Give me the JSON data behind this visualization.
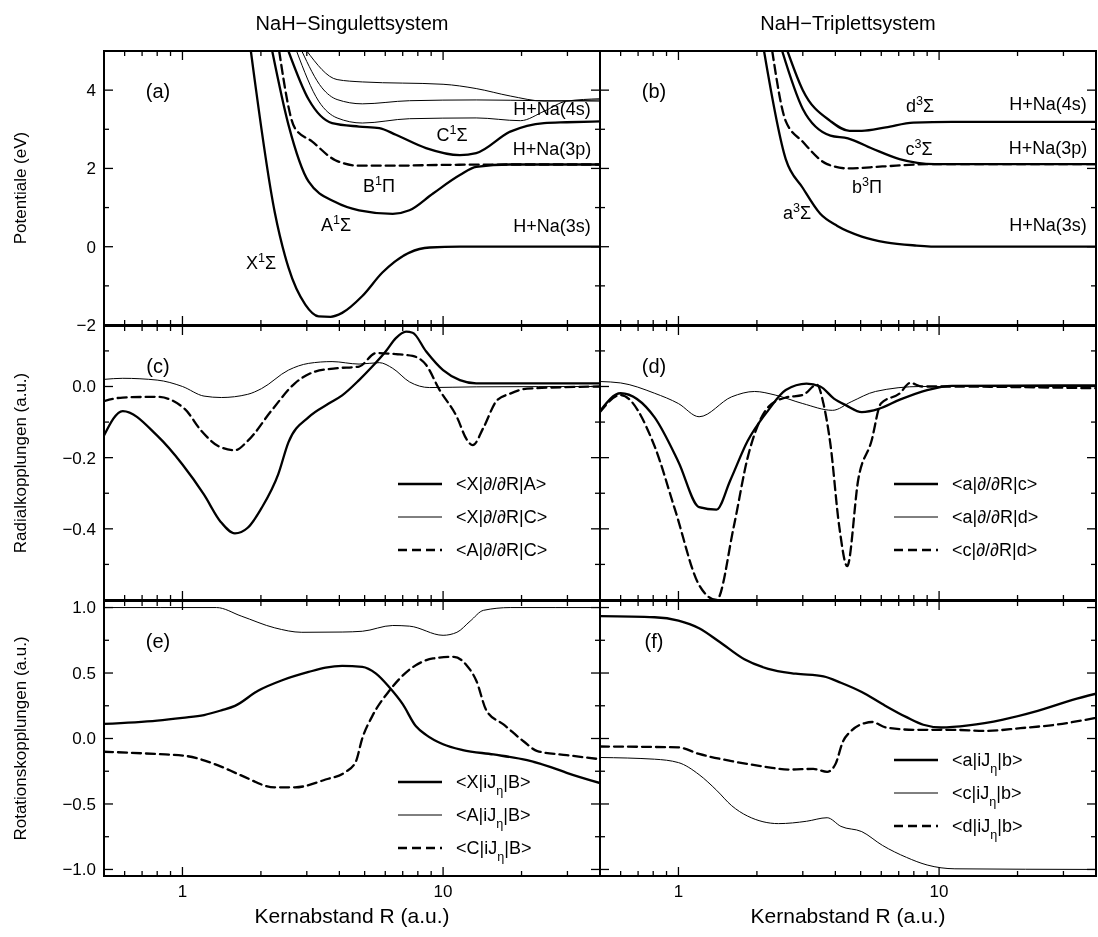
{
  "chart_data": [
    {
      "type": "line",
      "title": "NaH−Singulettsystem",
      "ylabel": "Potentiale (eV)",
      "log": "x",
      "tick_labels": "y",
      "legend": false,
      "xlim": [
        0.5,
        40
      ],
      "xticks": [
        {
          "value": 0.5,
          "label": null
        },
        {
          "value": 0.6,
          "label": null
        },
        {
          "value": 0.7,
          "label": null
        },
        {
          "value": 0.8,
          "label": null
        },
        {
          "value": 0.9,
          "label": null
        },
        {
          "value": 1,
          "label": null
        },
        {
          "value": 2,
          "label": null
        },
        {
          "value": 3,
          "label": null
        },
        {
          "value": 4,
          "label": null
        },
        {
          "value": 5,
          "label": null
        },
        {
          "value": 6,
          "label": null
        },
        {
          "value": 7,
          "label": null
        },
        {
          "value": 8,
          "label": null
        },
        {
          "value": 9,
          "label": null
        },
        {
          "value": 10,
          "label": null
        },
        {
          "value": 20,
          "label": null
        },
        {
          "value": 30,
          "label": null
        },
        {
          "value": 40,
          "label": null
        }
      ],
      "ylim": [
        -2,
        5
      ],
      "yticks": [
        {
          "value": -2,
          "label": "−2"
        },
        {
          "value": -1,
          "label": null
        },
        0,
        {
          "value": 1,
          "label": null
        },
        2,
        {
          "value": 3,
          "label": null
        },
        4,
        {
          "value": 5,
          "label": null
        }
      ],
      "series": [
        {
          "color": "#000000",
          "line_style": "solid",
          "x": [
            1.83,
            2.26,
            2.55,
            2.96,
            3.33,
            3.7,
            4.1,
            4.9,
            5.85,
            7.43,
            8.88,
            11.6,
            40
          ],
          "values": [
            5,
            0.88,
            -0.53,
            -1.48,
            -1.78,
            -1.79,
            -1.69,
            -1.26,
            -0.66,
            -0.15,
            -0.02,
            0,
            0
          ]
        },
        {
          "color": "#000000",
          "line_style": "solid",
          "x": [
            2.21,
            2.55,
            3.05,
            3.86,
            4.76,
            6.41,
            7.43,
            9.15,
            11.6,
            13.4,
            18.1,
            40
          ],
          "values": [
            5,
            3.12,
            1.66,
            1.14,
            0.93,
            0.84,
            0.93,
            1.36,
            1.83,
            2.04,
            2.1,
            2.1
          ]
        },
        {
          "color": "#000000",
          "line_style": "dashed",
          "x": [
            2.35,
            2.7,
            3.14,
            3.86,
            4.76,
            6.41,
            10,
            18.1,
            40
          ],
          "values": [
            5,
            3.03,
            2.69,
            2.21,
            2.07,
            2.07,
            2.09,
            2.1,
            2.1
          ]
        },
        {
          "color": "#000000",
          "line_style": "solid",
          "x": [
            2.55,
            3.05,
            3.75,
            4.76,
            5.69,
            6.59,
            8.6,
            11.6,
            13.4,
            18.1,
            24.4,
            29.8,
            40
          ],
          "values": [
            5,
            3.76,
            3.16,
            3.07,
            3.03,
            2.86,
            2.52,
            2.34,
            2.39,
            2.94,
            3.16,
            3.18,
            3.2
          ]
        },
        {
          "color": "#000000",
          "line_style": "solid",
          "x": [
            3.0,
            3.92,
            4.9,
            10,
            13.4,
            18.1,
            24.4,
            40
          ],
          "values": [
            5,
            4.27,
            4.21,
            4.15,
            4.04,
            3.85,
            3.72,
            3.75
          ]
        },
        {
          "color": "#000000",
          "line_style": "solid",
          "x": [
            2.87,
            3.43,
            3.92,
            4.9,
            7.43,
            13.4,
            24.4,
            40
          ],
          "values": [
            5,
            4.06,
            3.76,
            3.65,
            3.73,
            3.75,
            3.73,
            3.72
          ]
        },
        {
          "color": "#000000",
          "line_style": "solid",
          "x": [
            2.74,
            3.33,
            3.92,
            4.9,
            7.43,
            13.4,
            19.8,
            24.4,
            29.8,
            40
          ],
          "values": [
            5,
            3.72,
            3.29,
            3.16,
            3.27,
            3.29,
            3.22,
            3.46,
            3.72,
            3.78
          ]
        }
      ],
      "annotations": [
        "(a)",
        "X$^{1}$Σ",
        "A$^{1}$Σ",
        "B$^{1}$Π",
        "C$^{1}$Σ",
        "H+Na(4s)",
        "H+Na(3p)",
        "H+Na(3s)"
      ]
    },
    {
      "type": "line",
      "title": "NaH−Triplettsystem",
      "log": "x",
      "tick_labels": false,
      "legend": false,
      "xlim": [
        0.5,
        40
      ],
      "xticks": [
        {
          "value": 0.5,
          "label": null
        },
        {
          "value": 0.6,
          "label": null
        },
        {
          "value": 0.7,
          "label": null
        },
        {
          "value": 0.8,
          "label": null
        },
        {
          "value": 0.9,
          "label": null
        },
        {
          "value": 1,
          "label": null
        },
        {
          "value": 2,
          "label": null
        },
        {
          "value": 3,
          "label": null
        },
        {
          "value": 4,
          "label": null
        },
        {
          "value": 5,
          "label": null
        },
        {
          "value": 6,
          "label": null
        },
        {
          "value": 7,
          "label": null
        },
        {
          "value": 8,
          "label": null
        },
        {
          "value": 9,
          "label": null
        },
        {
          "value": 10,
          "label": null
        },
        {
          "value": 20,
          "label": null
        },
        {
          "value": 30,
          "label": null
        },
        {
          "value": 40,
          "label": null
        }
      ],
      "ylim": [
        -2,
        5
      ],
      "yticks": [
        {
          "value": -2,
          "label": null
        },
        {
          "value": -1,
          "label": null
        },
        {
          "value": 0,
          "label": null
        },
        {
          "value": 1,
          "label": null
        },
        {
          "value": 2,
          "label": null
        },
        {
          "value": 3,
          "label": null
        },
        {
          "value": 4,
          "label": null
        },
        {
          "value": 5,
          "label": null
        }
      ],
      "series": [
        {
          "color": "#000000",
          "line_style": "solid",
          "x": [
            2.13,
            2.58,
            3.0,
            3.5,
            4.07,
            5.05,
            6.25,
            8.2,
            10.2,
            40
          ],
          "values": [
            5,
            2.24,
            1.5,
            0.84,
            0.53,
            0.26,
            0.11,
            0.03,
            0,
            0
          ]
        },
        {
          "color": "#000000",
          "line_style": "dashed",
          "x": [
            2.29,
            2.58,
            3.0,
            3.72,
            4.47,
            6.06,
            9.6,
            40
          ],
          "values": [
            5,
            3.21,
            2.68,
            2.11,
            2.0,
            2.05,
            2.11,
            2.11
          ]
        },
        {
          "color": "#000000",
          "line_style": "solid",
          "x": [
            2.5,
            3.0,
            3.83,
            4.47,
            5.53,
            7.05,
            9.6,
            40
          ],
          "values": [
            5,
            3.52,
            2.84,
            2.77,
            2.51,
            2.24,
            2.11,
            2.11
          ]
        },
        {
          "color": "#000000",
          "line_style": "solid",
          "x": [
            2.62,
            3.0,
            3.83,
            4.53,
            5.05,
            6.25,
            7.97,
            11.2,
            40
          ],
          "values": [
            5,
            4.0,
            3.21,
            2.96,
            2.96,
            3.05,
            3.17,
            3.19,
            3.19
          ]
        }
      ],
      "annotations": [
        "(b)",
        "d$^{3}$Σ",
        "c$^{3}$Σ",
        "b$^{3}$Π",
        "a$^{3}$Σ",
        "H+Na(4s)",
        "H+Na(3p)",
        "H+Na(3s)"
      ]
    },
    {
      "type": "line",
      "ylabel": "Radialkopplungen (a.u.)",
      "log": "x",
      "tick_labels": "y",
      "legend": "bottom right",
      "xlim": [
        0.5,
        40
      ],
      "xticks": [
        {
          "value": 0.5,
          "label": null
        },
        {
          "value": 0.6,
          "label": null
        },
        {
          "value": 0.7,
          "label": null
        },
        {
          "value": 0.8,
          "label": null
        },
        {
          "value": 0.9,
          "label": null
        },
        {
          "value": 1,
          "label": null
        },
        {
          "value": 2,
          "label": null
        },
        {
          "value": 3,
          "label": null
        },
        {
          "value": 4,
          "label": null
        },
        {
          "value": 5,
          "label": null
        },
        {
          "value": 6,
          "label": null
        },
        {
          "value": 7,
          "label": null
        },
        {
          "value": 8,
          "label": null
        },
        {
          "value": 9,
          "label": null
        },
        {
          "value": 10,
          "label": null
        },
        {
          "value": 20,
          "label": null
        },
        {
          "value": 30,
          "label": null
        },
        {
          "value": 40,
          "label": null
        }
      ],
      "ylim": [
        -0.6,
        0.17
      ],
      "yticks": [
        {
          "value": -0.5,
          "label": null
        },
        {
          "value": -0.4,
          "label": "−0.4"
        },
        {
          "value": -0.3,
          "label": null
        },
        {
          "value": -0.2,
          "label": "−0.2"
        },
        {
          "value": -0.1,
          "label": null
        },
        {
          "value": 0,
          "label": "0.0"
        },
        {
          "value": 0.1,
          "label": null
        }
      ],
      "series": [
        {
          "name": "<X|∂/∂R|A>",
          "color": "#000000",
          "line_style": "solid",
          "x": [
            0.5,
            0.59,
            0.8,
            1,
            1.21,
            1.4,
            1.59,
            1.78,
            2.01,
            2.33,
            2.55,
            3.05,
            3.64,
            4.1,
            4.76,
            5.35,
            6.03,
            6.59,
            7.21,
            7.64,
            8.6,
            10,
            11.6,
            13.4,
            40
          ],
          "values": [
            -0.138,
            -0.069,
            -0.138,
            -0.219,
            -0.304,
            -0.38,
            -0.413,
            -0.397,
            -0.342,
            -0.247,
            -0.157,
            -0.086,
            -0.048,
            -0.025,
            0.018,
            0.056,
            0.099,
            0.136,
            0.154,
            0.151,
            0.099,
            0.046,
            0.018,
            0.009,
            0.009
          ]
        },
        {
          "name": "<X|∂/∂R|C>",
          "color": "#000000",
          "line_style": "solid",
          "x": [
            0.5,
            0.59,
            0.8,
            1,
            1.21,
            1.41,
            1.78,
            2.01,
            2.55,
            3.05,
            3.75,
            4.76,
            5.69,
            6.41,
            7.43,
            8.88,
            13.4,
            40
          ],
          "values": [
            0.02,
            0.023,
            0.018,
            0,
            -0.027,
            -0.031,
            -0.022,
            -0.006,
            0.046,
            0.065,
            0.07,
            0.063,
            0.067,
            0.051,
            0.013,
            -0.003,
            -0.001,
            0
          ]
        },
        {
          "name": "<A|∂/∂R|C>",
          "color": "#000000",
          "line_style": "dashed",
          "x": [
            0.5,
            0.59,
            0.8,
            1.02,
            1.18,
            1.37,
            1.59,
            1.78,
            2.2,
            2.7,
            3.23,
            3.86,
            4.76,
            5.53,
            6.59,
            7.64,
            8.6,
            9.7,
            11.3,
            12.3,
            13,
            14.3,
            16.1,
            18.1,
            21,
            40
          ],
          "values": [
            -0.041,
            -0.031,
            -0.029,
            -0.063,
            -0.124,
            -0.167,
            -0.179,
            -0.153,
            -0.067,
            0.009,
            0.042,
            0.051,
            0.056,
            0.094,
            0.091,
            0.086,
            0.061,
            -0.01,
            -0.086,
            -0.148,
            -0.165,
            -0.115,
            -0.039,
            -0.02,
            -0.006,
            0
          ]
        }
      ],
      "annotations": [
        "(c)"
      ]
    },
    {
      "type": "line",
      "log": "x",
      "tick_labels": false,
      "legend": "bottom right",
      "xlim": [
        0.5,
        40
      ],
      "xticks": [
        {
          "value": 0.5,
          "label": null
        },
        {
          "value": 0.6,
          "label": null
        },
        {
          "value": 0.7,
          "label": null
        },
        {
          "value": 0.8,
          "label": null
        },
        {
          "value": 0.9,
          "label": null
        },
        {
          "value": 1,
          "label": null
        },
        {
          "value": 2,
          "label": null
        },
        {
          "value": 3,
          "label": null
        },
        {
          "value": 4,
          "label": null
        },
        {
          "value": 5,
          "label": null
        },
        {
          "value": 6,
          "label": null
        },
        {
          "value": 7,
          "label": null
        },
        {
          "value": 8,
          "label": null
        },
        {
          "value": 9,
          "label": null
        },
        {
          "value": 10,
          "label": null
        },
        {
          "value": 20,
          "label": null
        },
        {
          "value": 30,
          "label": null
        },
        {
          "value": 40,
          "label": null
        }
      ],
      "ylim": [
        -0.6,
        0.17
      ],
      "yticks": [
        {
          "value": -0.5,
          "label": null
        },
        {
          "value": -0.4,
          "label": null
        },
        {
          "value": -0.3,
          "label": null
        },
        {
          "value": -0.2,
          "label": null
        },
        {
          "value": -0.1,
          "label": null
        },
        {
          "value": 0,
          "label": null
        },
        {
          "value": 0.1,
          "label": null
        }
      ],
      "series": [
        {
          "name": "<a|∂/∂R|c>",
          "color": "#000000",
          "line_style": "solid",
          "x": [
            0.5,
            0.6,
            0.81,
            1,
            1.2,
            1.4,
            1.58,
            1.84,
            2.21,
            2.58,
            3.1,
            3.5,
            3.95,
            4.4,
            5.05,
            5.87,
            7.07,
            9,
            11.2,
            40
          ],
          "values": [
            -0.069,
            -0.019,
            -0.087,
            -0.212,
            -0.339,
            -0.346,
            -0.264,
            -0.154,
            -0.067,
            -0.01,
            0.008,
            0,
            -0.034,
            -0.053,
            -0.072,
            -0.063,
            -0.037,
            -0.01,
            0.002,
            0.003
          ]
        },
        {
          "name": "<a|∂/∂R|d>",
          "color": "#000000",
          "line_style": "solid",
          "x": [
            0.5,
            0.6,
            0.81,
            1,
            1.2,
            1.6,
            1.96,
            2.35,
            3,
            3.9,
            4.6,
            5.7,
            8.5,
            40
          ],
          "values": [
            0.014,
            0.01,
            -0.019,
            -0.048,
            -0.085,
            -0.029,
            -0.014,
            -0.024,
            -0.048,
            -0.067,
            -0.043,
            -0.014,
            0,
            0
          ]
        },
        {
          "name": "<c|∂/∂R|d>",
          "color": "#000000",
          "line_style": "dashed",
          "x": [
            0.5,
            0.6,
            0.81,
            0.97,
            1.2,
            1.4,
            1.63,
            1.84,
            2.21,
            2.58,
            3,
            3.4,
            3.6,
            3.83,
            4.14,
            4.44,
            4.9,
            5.5,
            5.98,
            7.07,
            7.75,
            8.6,
            9.6,
            40
          ],
          "values": [
            -0.072,
            -0.024,
            -0.168,
            -0.346,
            -0.558,
            -0.6,
            -0.394,
            -0.202,
            -0.058,
            -0.031,
            -0.024,
            0.005,
            -0.048,
            -0.163,
            -0.394,
            -0.505,
            -0.26,
            -0.154,
            -0.048,
            -0.019,
            0.01,
            0,
            0,
            -0.005
          ]
        }
      ],
      "annotations": [
        "(d)"
      ]
    },
    {
      "type": "line",
      "xlabel": "Kernabstand R (a.u.)",
      "ylabel": "Rotationskopplungen (a.u.)",
      "log": "x",
      "legend": "bottom right",
      "xlim": [
        0.5,
        40
      ],
      "xticks": [
        {
          "value": 0.5,
          "label": null
        },
        {
          "value": 0.6,
          "label": null
        },
        {
          "value": 0.7,
          "label": null
        },
        {
          "value": 0.8,
          "label": null
        },
        {
          "value": 0.9,
          "label": null
        },
        {
          "value": 1,
          "label": "1"
        },
        {
          "value": 2,
          "label": null
        },
        {
          "value": 3,
          "label": null
        },
        {
          "value": 4,
          "label": null
        },
        {
          "value": 5,
          "label": null
        },
        {
          "value": 6,
          "label": null
        },
        {
          "value": 7,
          "label": null
        },
        {
          "value": 8,
          "label": null
        },
        {
          "value": 9,
          "label": null
        },
        {
          "value": 10,
          "label": "10"
        },
        {
          "value": 20,
          "label": null
        },
        {
          "value": 30,
          "label": null
        },
        {
          "value": 40,
          "label": null
        }
      ],
      "ylim": [
        -1.05,
        1.05
      ],
      "yticks": [
        {
          "value": -1,
          "label": "−1.0"
        },
        {
          "value": -0.75,
          "label": null
        },
        {
          "value": -0.5,
          "label": "−0.5"
        },
        {
          "value": -0.25,
          "label": null
        },
        {
          "value": 0,
          "label": "0.0"
        },
        {
          "value": 0.25,
          "label": null
        },
        0.5,
        {
          "value": 0.75,
          "label": null
        },
        {
          "value": 1,
          "label": "1.0"
        }
      ],
      "series": [
        {
          "name": "<X|iJ$_{η}$|B>",
          "color": "#000000",
          "line_style": "solid",
          "x": [
            0.5,
            0.8,
            1,
            1.21,
            1.41,
            1.59,
            1.95,
            2.4,
            3.05,
            3.54,
            4.1,
            4.9,
            5.53,
            6.22,
            7,
            7.87,
            8.6,
            10,
            11.9,
            15.6,
            21,
            25.9,
            29.8,
            40
          ],
          "values": [
            0.111,
            0.137,
            0.158,
            0.179,
            0.215,
            0.249,
            0.365,
            0.443,
            0.508,
            0.541,
            0.554,
            0.547,
            0.495,
            0.391,
            0.262,
            0.093,
            0.028,
            -0.044,
            -0.088,
            -0.122,
            -0.166,
            -0.218,
            -0.262,
            -0.34
          ]
        },
        {
          "name": "<A|iJ$_{η}$|B>",
          "color": "#000000",
          "line_style": "solid",
          "x": [
            0.5,
            1.35,
            1.68,
            2.26,
            2.87,
            4.1,
            4.9,
            6.41,
            7.43,
            10,
            11.3,
            12.7,
            14.3,
            18.1,
            40
          ],
          "values": [
            1,
            1,
            0.935,
            0.845,
            0.811,
            0.813,
            0.819,
            0.863,
            0.858,
            0.788,
            0.811,
            0.896,
            0.979,
            1,
            1
          ]
        },
        {
          "name": "<C|iJ$_{η}$|B>",
          "color": "#000000",
          "line_style": "dashed",
          "x": [
            0.5,
            0.8,
            1.02,
            1.37,
            1.68,
            2.26,
            2.7,
            3.54,
            4.22,
            4.62,
            4.9,
            5.35,
            6.22,
            7.43,
            9.15,
            11,
            12.3,
            13.4,
            14.7,
            17.1,
            20.4,
            23,
            29.8,
            40
          ],
          "values": [
            -0.101,
            -0.119,
            -0.132,
            -0.205,
            -0.282,
            -0.373,
            -0.373,
            -0.313,
            -0.256,
            -0.179,
            0.003,
            0.171,
            0.365,
            0.526,
            0.611,
            0.624,
            0.56,
            0.443,
            0.21,
            0.106,
            -0.023,
            -0.096,
            -0.127,
            -0.158
          ]
        }
      ],
      "annotations": [
        "(e)"
      ]
    },
    {
      "type": "line",
      "xlabel": "Kernabstand R (a.u.)",
      "log": "x",
      "tick_labels": "x",
      "legend": "bottom right",
      "xlim": [
        0.5,
        40
      ],
      "xticks": [
        {
          "value": 0.5,
          "label": null
        },
        {
          "value": 0.6,
          "label": null
        },
        {
          "value": 0.7,
          "label": null
        },
        {
          "value": 0.8,
          "label": null
        },
        {
          "value": 0.9,
          "label": null
        },
        {
          "value": 1,
          "label": "1"
        },
        {
          "value": 2,
          "label": null
        },
        {
          "value": 3,
          "label": null
        },
        {
          "value": 4,
          "label": null
        },
        {
          "value": 5,
          "label": null
        },
        {
          "value": 6,
          "label": null
        },
        {
          "value": 7,
          "label": null
        },
        {
          "value": 8,
          "label": null
        },
        {
          "value": 9,
          "label": null
        },
        {
          "value": 10,
          "label": "10"
        },
        {
          "value": 20,
          "label": null
        },
        {
          "value": 30,
          "label": null
        },
        {
          "value": 40,
          "label": null
        }
      ],
      "ylim": [
        -1.05,
        1.05
      ],
      "yticks": [
        {
          "value": -1,
          "label": null
        },
        {
          "value": -0.75,
          "label": null
        },
        {
          "value": -0.5,
          "label": null
        },
        {
          "value": -0.25,
          "label": null
        },
        {
          "value": 0,
          "label": null
        },
        {
          "value": 0.25,
          "label": null
        },
        {
          "value": 0.5,
          "label": null
        },
        {
          "value": 0.75,
          "label": null
        },
        {
          "value": 1,
          "label": null
        }
      ],
      "series": [
        {
          "name": "<a|iJ$_{η}$|b>",
          "color": "#000000",
          "line_style": "solid",
          "x": [
            0.5,
            0.81,
            1,
            1.2,
            1.44,
            1.79,
            2.21,
            2.82,
            3.6,
            4.2,
            5.05,
            6.06,
            7.5,
            8.7,
            10.2,
            12.96,
            17.6,
            23.9,
            32.5,
            40
          ],
          "values": [
            0.934,
            0.926,
            0.9,
            0.842,
            0.737,
            0.605,
            0.532,
            0.495,
            0.474,
            0.426,
            0.355,
            0.263,
            0.163,
            0.105,
            0.084,
            0.1,
            0.145,
            0.211,
            0.295,
            0.342
          ]
        },
        {
          "name": "<c|iJ$_{η}$|b>",
          "color": "#000000",
          "line_style": "solid",
          "x": [
            0.5,
            0.81,
            1,
            1.2,
            1.4,
            1.6,
            1.84,
            2.42,
            3.1,
            3.72,
            4.2,
            5.05,
            6.06,
            7.5,
            9,
            11.5,
            40
          ],
          "values": [
            -0.145,
            -0.158,
            -0.184,
            -0.276,
            -0.395,
            -0.513,
            -0.592,
            -0.65,
            -0.632,
            -0.605,
            -0.671,
            -0.711,
            -0.816,
            -0.908,
            -0.966,
            -0.995,
            -1
          ]
        },
        {
          "name": "<d|iJ$_{η}$|b>",
          "color": "#000000",
          "line_style": "dashed",
          "x": [
            0.5,
            1,
            1.2,
            1.58,
            2.08,
            2.66,
            3.29,
            3.72,
            4,
            4.27,
            4.6,
            5.2,
            5.53,
            6.25,
            8.2,
            11.2,
            15.1,
            20.5,
            27.9,
            40
          ],
          "values": [
            -0.061,
            -0.068,
            -0.118,
            -0.171,
            -0.211,
            -0.237,
            -0.232,
            -0.255,
            -0.197,
            -0.026,
            0.058,
            0.118,
            0.126,
            0.084,
            0.066,
            0.066,
            0.058,
            0.079,
            0.105,
            0.158
          ]
        }
      ],
      "annotations": [
        "(f)"
      ]
    }
  ]
}
